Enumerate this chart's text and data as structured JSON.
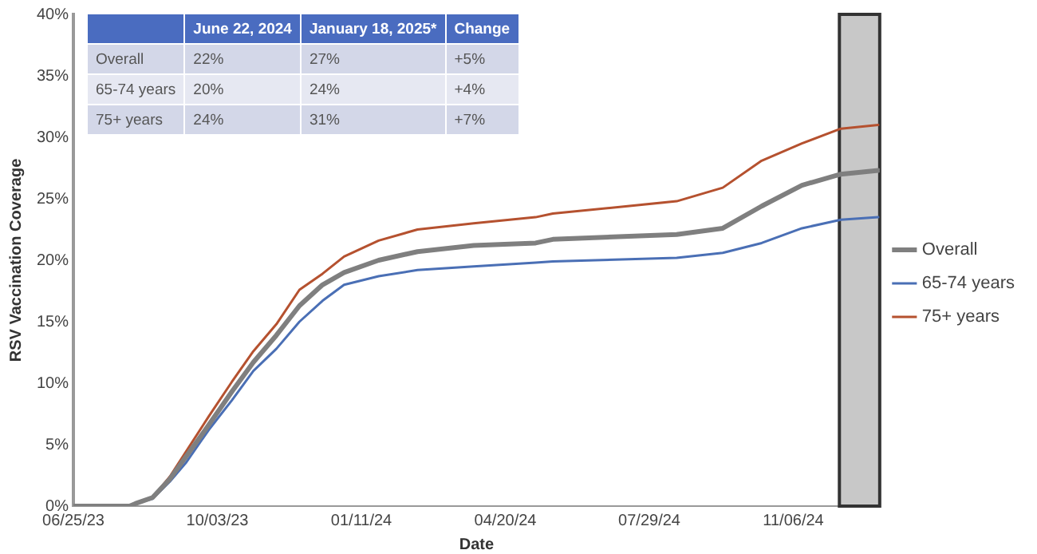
{
  "chart_data": {
    "type": "line",
    "xlabel": "Date",
    "ylabel": "RSV Vaccination Coverage",
    "series": [
      {
        "name": "Overall",
        "color": "#7f7f7f",
        "x": [
          "2023-06-25",
          "2023-08-03",
          "2023-08-07",
          "2023-08-19",
          "2023-08-31",
          "2023-09-11",
          "2023-09-27",
          "2023-10-13",
          "2023-10-28",
          "2023-11-13",
          "2023-11-29",
          "2023-12-15",
          "2023-12-30",
          "2024-01-23",
          "2024-02-19",
          "2024-03-29",
          "2024-05-11",
          "2024-05-23",
          "2024-08-17",
          "2024-09-18",
          "2024-10-15",
          "2024-11-12",
          "2024-12-09",
          "2025-01-04"
        ],
        "values": [
          0,
          0,
          0.2,
          0.7,
          2.2,
          4.0,
          6.6,
          9.3,
          11.7,
          13.9,
          16.3,
          18.0,
          19.0,
          20.0,
          20.7,
          21.2,
          21.4,
          21.7,
          22.1,
          22.6,
          24.4,
          26.1,
          27.0,
          27.3
        ]
      },
      {
        "name": "65-74 years",
        "color": "#4a6fb5",
        "x": [
          "2023-08-07",
          "2023-08-19",
          "2023-08-31",
          "2023-09-11",
          "2023-09-27",
          "2023-10-13",
          "2023-10-28",
          "2023-11-13",
          "2023-11-29",
          "2023-12-15",
          "2023-12-30",
          "2024-01-23",
          "2024-02-19",
          "2024-03-29",
          "2024-05-11",
          "2024-05-23",
          "2024-08-17",
          "2024-09-18",
          "2024-10-15",
          "2024-11-12",
          "2024-12-09",
          "2025-01-04"
        ],
        "values": [
          0.2,
          0.6,
          2.0,
          3.5,
          6.2,
          8.6,
          11.0,
          12.8,
          15.0,
          16.7,
          18.0,
          18.7,
          19.2,
          19.5,
          19.8,
          19.9,
          20.2,
          20.6,
          21.4,
          22.6,
          23.3,
          23.5
        ]
      },
      {
        "name": "75+ years",
        "color": "#b5512f",
        "x": [
          "2023-08-19",
          "2023-08-31",
          "2023-09-11",
          "2023-09-27",
          "2023-10-13",
          "2023-10-28",
          "2023-11-13",
          "2023-11-29",
          "2023-12-15",
          "2023-12-30",
          "2024-01-23",
          "2024-02-19",
          "2024-03-29",
          "2024-05-11",
          "2024-05-23",
          "2024-08-17",
          "2024-09-18",
          "2024-10-15",
          "2024-11-12",
          "2024-12-09",
          "2025-01-04"
        ],
        "values": [
          0.7,
          2.4,
          4.4,
          7.3,
          10.1,
          12.6,
          14.8,
          17.6,
          18.9,
          20.3,
          21.6,
          22.5,
          23.0,
          23.5,
          23.8,
          24.8,
          25.9,
          28.1,
          29.5,
          30.7,
          31.0
        ]
      }
    ],
    "xlim": [
      "2023-06-25",
      "2025-01-05"
    ],
    "xticks": [
      {
        "value": "2023-06-25",
        "label": "06/25/23"
      },
      {
        "value": "2023-10-03",
        "label": "10/03/23"
      },
      {
        "value": "2024-01-11",
        "label": "01/11/24"
      },
      {
        "value": "2024-04-20",
        "label": "04/20/24"
      },
      {
        "value": "2024-07-29",
        "label": "07/29/24"
      },
      {
        "value": "2024-11-06",
        "label": "11/06/24"
      }
    ],
    "ylim": [
      0,
      40
    ],
    "yticks": [
      {
        "value": 0,
        "label": "0%"
      },
      {
        "value": 5,
        "label": "5%"
      },
      {
        "value": 10,
        "label": "10%"
      },
      {
        "value": 15,
        "label": "15%"
      },
      {
        "value": 20,
        "label": "20%"
      },
      {
        "value": 25,
        "label": "25%"
      },
      {
        "value": 30,
        "label": "30%"
      },
      {
        "value": 35,
        "label": "35%"
      },
      {
        "value": 40,
        "label": "40%"
      }
    ],
    "bands": [
      {
        "axis": "x",
        "from": "2024-12-08",
        "to": "2025-01-05",
        "color": "#c8c8c8"
      }
    ],
    "annotations": [
      "June 22, 2024",
      "January 18, 2025*",
      "Change",
      "Overall",
      "22%",
      "27%",
      "+5%",
      "65-74 years",
      "20%",
      "24%",
      "+4%",
      "75+ years",
      "24%",
      "31%",
      "+7%"
    ],
    "grid": false,
    "legend": "right",
    "marker": "none",
    "line_style": "solid"
  }
}
